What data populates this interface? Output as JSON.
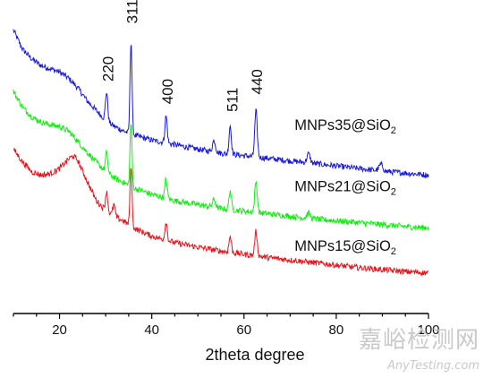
{
  "chart_data": {
    "type": "line",
    "title": "",
    "xlabel": "2theta degree",
    "ylabel": "",
    "xlim": [
      10,
      100
    ],
    "x_ticks": [
      20,
      40,
      60,
      80,
      100
    ],
    "y_axis_visible": false,
    "grid": false,
    "noise": 0.045,
    "series": [
      {
        "name": "MNPs35@SiO2",
        "color": "#1a1adb",
        "baseline": [
          [
            10,
            3.75
          ],
          [
            12,
            3.45
          ],
          [
            14,
            3.3
          ],
          [
            16,
            3.2
          ],
          [
            18,
            3.15
          ],
          [
            20,
            3.1
          ],
          [
            22,
            3.0
          ],
          [
            24,
            2.85
          ],
          [
            26,
            2.65
          ],
          [
            28,
            2.5
          ],
          [
            30,
            2.35
          ],
          [
            32,
            2.25
          ],
          [
            34,
            2.18
          ],
          [
            36,
            2.12
          ],
          [
            40,
            2.04
          ],
          [
            45,
            1.97
          ],
          [
            50,
            1.9
          ],
          [
            55,
            1.84
          ],
          [
            60,
            1.8
          ],
          [
            65,
            1.76
          ],
          [
            70,
            1.72
          ],
          [
            75,
            1.68
          ],
          [
            80,
            1.64
          ],
          [
            85,
            1.6
          ],
          [
            90,
            1.56
          ],
          [
            95,
            1.53
          ],
          [
            100,
            1.5
          ]
        ],
        "peaks": [
          {
            "pos": 30.2,
            "height": 0.45,
            "width": 0.35
          },
          {
            "pos": 35.5,
            "height": 1.45,
            "width": 0.3
          },
          {
            "pos": 43.1,
            "height": 0.42,
            "width": 0.35
          },
          {
            "pos": 53.5,
            "height": 0.18,
            "width": 0.45
          },
          {
            "pos": 57.0,
            "height": 0.45,
            "width": 0.35
          },
          {
            "pos": 62.6,
            "height": 0.72,
            "width": 0.38
          },
          {
            "pos": 74.0,
            "height": 0.14,
            "width": 0.5
          },
          {
            "pos": 89.7,
            "height": 0.1,
            "width": 0.6
          }
        ]
      },
      {
        "name": "MNPs21@SiO2",
        "color": "#10ee10",
        "baseline": [
          [
            10,
            2.8
          ],
          [
            12,
            2.55
          ],
          [
            14,
            2.4
          ],
          [
            16,
            2.32
          ],
          [
            18,
            2.28
          ],
          [
            20,
            2.25
          ],
          [
            22,
            2.18
          ],
          [
            24,
            2.02
          ],
          [
            26,
            1.85
          ],
          [
            28,
            1.7
          ],
          [
            30,
            1.55
          ],
          [
            32,
            1.45
          ],
          [
            34,
            1.38
          ],
          [
            36,
            1.3
          ],
          [
            40,
            1.2
          ],
          [
            45,
            1.1
          ],
          [
            50,
            1.04
          ],
          [
            55,
            0.98
          ],
          [
            60,
            0.94
          ],
          [
            65,
            0.9
          ],
          [
            70,
            0.86
          ],
          [
            75,
            0.82
          ],
          [
            80,
            0.79
          ],
          [
            85,
            0.76
          ],
          [
            90,
            0.73
          ],
          [
            95,
            0.7
          ],
          [
            100,
            0.68
          ]
        ],
        "peaks": [
          {
            "pos": 30.2,
            "height": 0.3,
            "width": 0.35
          },
          {
            "pos": 35.5,
            "height": 1.0,
            "width": 0.3
          },
          {
            "pos": 43.1,
            "height": 0.3,
            "width": 0.35
          },
          {
            "pos": 53.5,
            "height": 0.12,
            "width": 0.45
          },
          {
            "pos": 57.0,
            "height": 0.3,
            "width": 0.35
          },
          {
            "pos": 62.6,
            "height": 0.48,
            "width": 0.38
          },
          {
            "pos": 74.0,
            "height": 0.08,
            "width": 0.5
          }
        ]
      },
      {
        "name": "MNPs15@SiO2",
        "color": "#e8141c",
        "baseline": [
          [
            10,
            1.9
          ],
          [
            12,
            1.7
          ],
          [
            14,
            1.55
          ],
          [
            16,
            1.5
          ],
          [
            18,
            1.52
          ],
          [
            20,
            1.6
          ],
          [
            22,
            1.75
          ],
          [
            23,
            1.8
          ],
          [
            24,
            1.72
          ],
          [
            26,
            1.4
          ],
          [
            28,
            1.1
          ],
          [
            30,
            0.95
          ],
          [
            32,
            0.85
          ],
          [
            34,
            0.78
          ],
          [
            36,
            0.68
          ],
          [
            40,
            0.55
          ],
          [
            45,
            0.45
          ],
          [
            50,
            0.38
          ],
          [
            55,
            0.32
          ],
          [
            60,
            0.27
          ],
          [
            65,
            0.22
          ],
          [
            70,
            0.18
          ],
          [
            75,
            0.14
          ],
          [
            80,
            0.1
          ],
          [
            85,
            0.06
          ],
          [
            90,
            0.03
          ],
          [
            95,
            0.0
          ],
          [
            100,
            -0.02
          ]
        ],
        "peaks": [
          {
            "pos": 30.2,
            "height": 0.3,
            "width": 0.35
          },
          {
            "pos": 31.8,
            "height": 0.18,
            "width": 0.35
          },
          {
            "pos": 35.5,
            "height": 0.95,
            "width": 0.3
          },
          {
            "pos": 43.1,
            "height": 0.28,
            "width": 0.35
          },
          {
            "pos": 57.0,
            "height": 0.25,
            "width": 0.35
          },
          {
            "pos": 62.6,
            "height": 0.38,
            "width": 0.38
          }
        ]
      }
    ],
    "series_labels": [
      {
        "main": "MNPs35@SiO",
        "sub": "2",
        "x": 93,
        "y": 2.2
      },
      {
        "main": "MNPs21@SiO",
        "sub": "2",
        "x": 93,
        "y": 1.25
      },
      {
        "main": "MNPs15@SiO",
        "sub": "2",
        "x": 93,
        "y": 0.32
      }
    ],
    "peak_labels": [
      {
        "text": "220",
        "x": 30.5,
        "y": 2.95
      },
      {
        "text": "311",
        "x": 35.7,
        "y": 3.85
      },
      {
        "text": "400",
        "x": 43.4,
        "y": 2.6
      },
      {
        "text": "511",
        "x": 57.4,
        "y": 2.48
      },
      {
        "text": "440",
        "x": 62.8,
        "y": 2.75
      }
    ]
  },
  "watermark": {
    "cn": "嘉峪检测网",
    "en": "AnyTesting.com"
  }
}
